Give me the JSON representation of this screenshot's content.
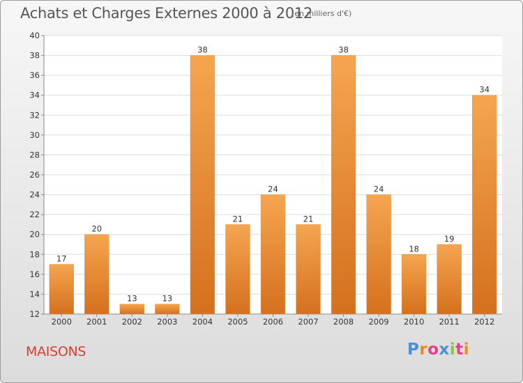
{
  "chart_data": {
    "type": "bar",
    "title": "Achats et Charges Externes 2000 à 2012",
    "subtitle": "(en milliers d'€)",
    "categories": [
      "2000",
      "2001",
      "2002",
      "2003",
      "2004",
      "2005",
      "2006",
      "2007",
      "2008",
      "2009",
      "2010",
      "2011",
      "2012"
    ],
    "values": [
      17,
      20,
      13,
      13,
      38,
      21,
      24,
      21,
      38,
      24,
      18,
      19,
      34
    ],
    "ylim": [
      12,
      40
    ],
    "yticks": [
      12,
      14,
      16,
      18,
      20,
      22,
      24,
      26,
      28,
      30,
      32,
      34,
      36,
      38,
      40
    ],
    "grid": true,
    "bar_color_top": "#f5a550",
    "bar_color_bottom": "#d4701e"
  },
  "footer": {
    "place_name": "MAISONS",
    "logo_text": "Proxiti",
    "logo_colors": [
      "#4a8fd8",
      "#f08a1c",
      "#e63f8a",
      "#8cc63f"
    ]
  }
}
